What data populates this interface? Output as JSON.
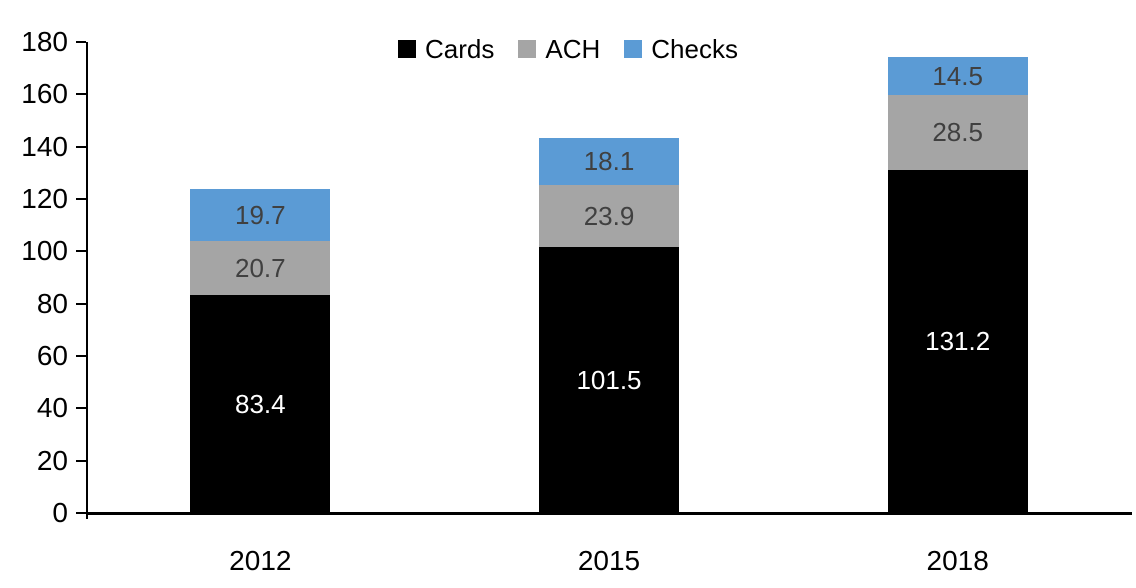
{
  "chart_data": {
    "type": "bar",
    "subtype": "stacked-column",
    "title": "",
    "xlabel": "",
    "ylabel": "",
    "categories": [
      "2012",
      "2015",
      "2018"
    ],
    "series": [
      {
        "name": "Cards",
        "color": "#000000",
        "label_color": "#ffffff",
        "values": [
          83.4,
          101.5,
          131.2
        ]
      },
      {
        "name": "ACH",
        "color": "#a5a5a5",
        "label_color": "#404040",
        "values": [
          20.7,
          23.9,
          28.5
        ]
      },
      {
        "name": "Checks",
        "color": "#5b9bd5",
        "label_color": "#404040",
        "values": [
          19.7,
          18.1,
          14.5
        ]
      }
    ],
    "totals": [
      123.8,
      143.5,
      174.2
    ],
    "ylim": [
      0,
      180
    ],
    "ytick_interval": 20,
    "ytick_labels": [
      "0",
      "20",
      "40",
      "60",
      "80",
      "100",
      "120",
      "140",
      "160",
      "180"
    ],
    "grid": false,
    "data_labels_visible": true,
    "legend_position": "top-center",
    "axis_color": "#000000",
    "background_color": "#ffffff"
  }
}
